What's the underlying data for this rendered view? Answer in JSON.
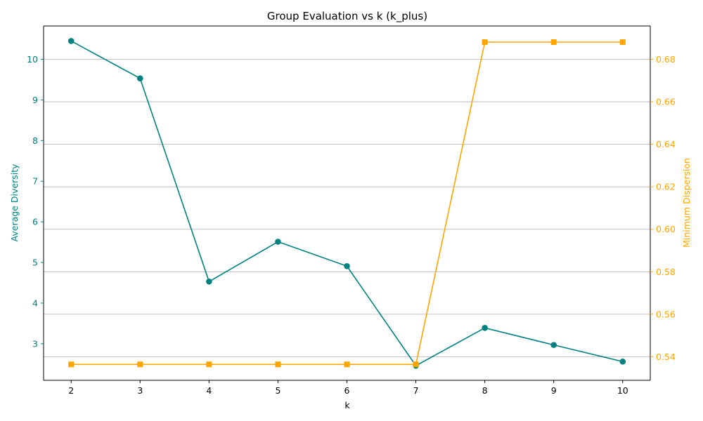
{
  "chart_data": {
    "type": "line",
    "title": "Group Evaluation vs k (k_plus)",
    "xlabel": "k",
    "x": [
      2,
      3,
      4,
      5,
      6,
      7,
      8,
      9,
      10
    ],
    "xlim": [
      1.6,
      10.4
    ],
    "grid": "horizontal (right axis)",
    "series": [
      {
        "axis": "left",
        "label": "Average Diversity",
        "color": "#008080",
        "marker": "circle",
        "values": [
          10.45,
          9.53,
          4.53,
          5.51,
          4.91,
          2.46,
          3.39,
          2.97,
          2.56
        ],
        "ylim": [
          2.1,
          10.82
        ],
        "ticks": [
          3,
          4,
          5,
          6,
          7,
          8,
          9,
          10
        ]
      },
      {
        "axis": "right",
        "label": "Minimum Dispersion",
        "color": "#FFA500",
        "marker": "square",
        "values": [
          0.5364,
          0.5364,
          0.5364,
          0.5364,
          0.5364,
          0.5364,
          0.6881,
          0.6881,
          0.6881
        ],
        "ylim": [
          0.5289,
          0.6957
        ],
        "ticks": [
          "0.54",
          "0.56",
          "0.58",
          "0.60",
          "0.62",
          "0.64",
          "0.66",
          "0.68"
        ]
      }
    ]
  }
}
